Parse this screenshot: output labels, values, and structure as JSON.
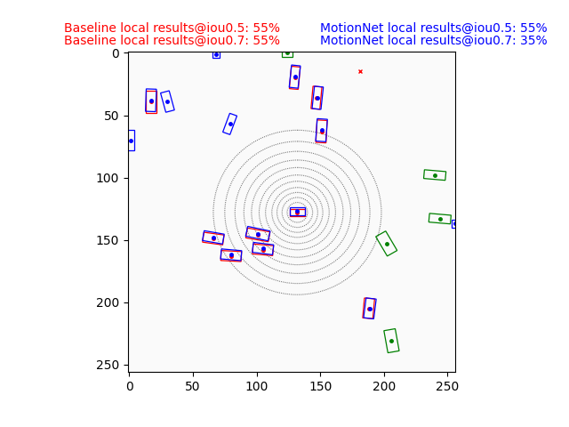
{
  "chart_data": {
    "type": "box_map",
    "texts": [
      {
        "text": "Baseline local results@iou0.5: 55%",
        "color": "red",
        "side": "left"
      },
      {
        "text": "Baseline local results@iou0.7: 55%",
        "color": "red",
        "side": "left"
      },
      {
        "text": "MotionNet local results@iou0.5: 55%",
        "color": "blue",
        "side": "right"
      },
      {
        "text": "MotionNet local results@iou0.7: 35%",
        "color": "blue",
        "side": "right"
      }
    ],
    "xlim": [
      -1,
      256
    ],
    "ylim": [
      256,
      -1
    ],
    "xticks": [
      0,
      50,
      100,
      150,
      200,
      250
    ],
    "yticks": [
      0,
      50,
      100,
      150,
      200,
      250
    ],
    "rings": {
      "center": [
        132,
        128
      ],
      "radii": [
        8,
        12,
        16,
        20,
        25,
        30,
        36,
        42,
        49,
        57,
        66
      ]
    },
    "box_groups": [
      {
        "color": "red",
        "boxes": [
          [
            132,
            128,
            12,
            6,
            0
          ],
          [
            130,
            20,
            7,
            18,
            5
          ],
          [
            147,
            36,
            7,
            18,
            5
          ],
          [
            151,
            63,
            8,
            18,
            3
          ],
          [
            17,
            39,
            8,
            18,
            0
          ],
          [
            66,
            149,
            16,
            8,
            8
          ],
          [
            101,
            146,
            18,
            8,
            10
          ],
          [
            105,
            158,
            16,
            8,
            5
          ],
          [
            80,
            163,
            16,
            8,
            3
          ],
          [
            188,
            205,
            8,
            16,
            5
          ]
        ]
      },
      {
        "color": "blue",
        "boxes": [
          [
            132,
            127,
            12,
            6,
            0
          ],
          [
            130,
            19,
            7,
            18,
            6
          ],
          [
            148,
            36,
            7,
            18,
            6
          ],
          [
            151,
            62,
            8,
            18,
            4
          ],
          [
            17,
            38,
            8,
            18,
            2
          ],
          [
            66,
            148,
            16,
            8,
            10
          ],
          [
            101,
            145,
            18,
            8,
            12
          ],
          [
            105,
            157,
            16,
            8,
            7
          ],
          [
            80,
            162,
            16,
            8,
            5
          ],
          [
            189,
            205,
            8,
            16,
            7
          ],
          [
            30,
            39,
            7,
            16,
            -15
          ],
          [
            79,
            57,
            6,
            16,
            20
          ],
          [
            1,
            70,
            6,
            16,
            0
          ],
          [
            256,
            137,
            6,
            6,
            0
          ],
          [
            68,
            1,
            6,
            6,
            0
          ]
        ]
      },
      {
        "color": "green",
        "boxes": [
          [
            240,
            98,
            17,
            7,
            5
          ],
          [
            244,
            133,
            17,
            7,
            5
          ],
          [
            202,
            153,
            9,
            18,
            -30
          ],
          [
            206,
            231,
            9,
            18,
            -10
          ],
          [
            124,
            0,
            8,
            6,
            0
          ]
        ]
      }
    ],
    "points": [
      {
        "color": "red",
        "x": 181,
        "y": 15
      }
    ]
  }
}
